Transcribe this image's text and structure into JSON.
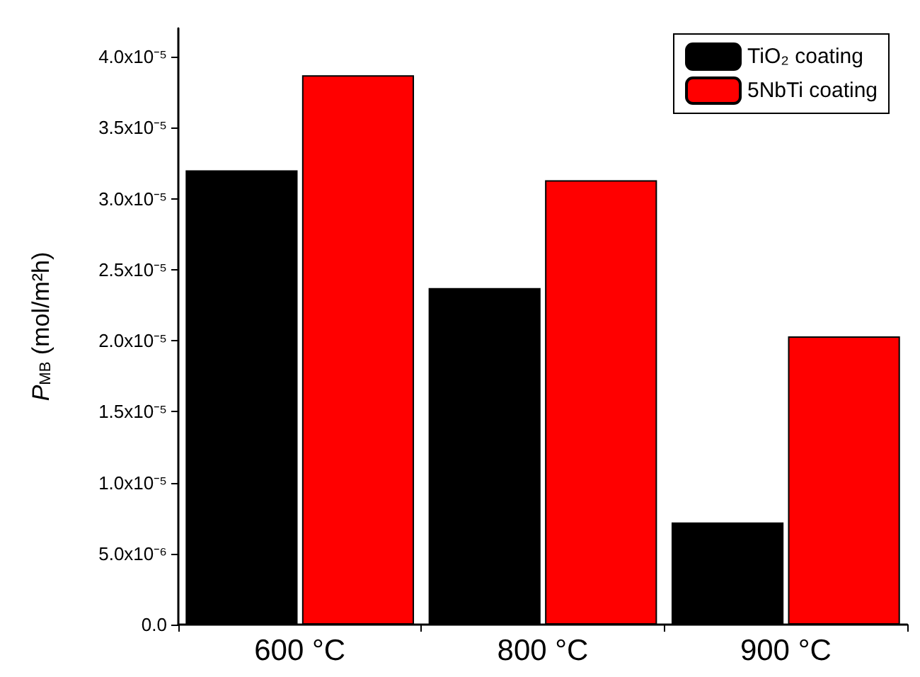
{
  "chart_data": {
    "type": "bar",
    "ylabel": "P$_{MB}$ (mol/m²h)",
    "categories": [
      "600 °C",
      "800 °C",
      "900 °C"
    ],
    "series": [
      {
        "name": "TiO₂ coating",
        "color": "#000000",
        "values": [
          3.2e-05,
          2.37e-05,
          7.2e-06
        ]
      },
      {
        "name": "5NbTi coating",
        "color": "#ff0000",
        "values": [
          3.87e-05,
          3.13e-05,
          2.03e-05
        ]
      }
    ],
    "ylim": [
      0,
      4.2e-05
    ],
    "yticks": [
      {
        "value": 0,
        "label": "0.0"
      },
      {
        "value": 5e-06,
        "label": "5.0x10⁻⁶"
      },
      {
        "value": 1e-05,
        "label": "1.0x10⁻⁵"
      },
      {
        "value": 1.5e-05,
        "label": "1.5x10⁻⁵"
      },
      {
        "value": 2e-05,
        "label": "2.0x10⁻⁵"
      },
      {
        "value": 2.5e-05,
        "label": "2.5x10⁻⁵"
      },
      {
        "value": 3e-05,
        "label": "3.0x10⁻⁵"
      },
      {
        "value": 3.5e-05,
        "label": "3.5x10⁻⁵"
      },
      {
        "value": 4e-05,
        "label": "4.0x10⁻⁵"
      }
    ],
    "legend": "top right",
    "grid": false
  }
}
